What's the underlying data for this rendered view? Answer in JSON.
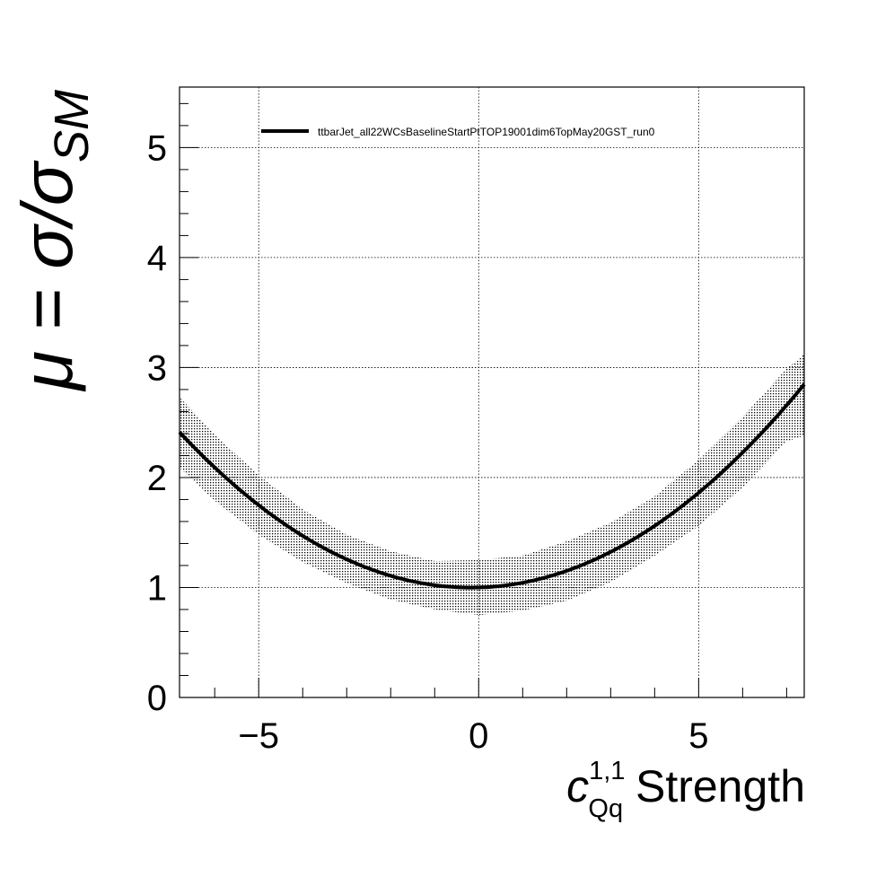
{
  "chart_data": {
    "type": "line",
    "xlabel_symbol": "c",
    "xlabel_superscript": "1,1",
    "xlabel_subscript": "Qq",
    "xlabel_suffix": " Strength",
    "ylabel_prefix": "μ = σ/σ",
    "ylabel_subscript": "SM",
    "xlim": [
      -6.8,
      7.4
    ],
    "ylim": [
      0,
      5.55
    ],
    "x_major_ticks": [
      -5,
      0,
      5
    ],
    "x_tick_labels": [
      "−5",
      "0",
      "5"
    ],
    "y_major_ticks": [
      0,
      1,
      2,
      3,
      4,
      5
    ],
    "y_tick_labels": [
      "0",
      "1",
      "2",
      "3",
      "4",
      "5"
    ],
    "grid": true,
    "legend_position": "top-left",
    "series": [
      {
        "name": "ttbarJet_all22WCsBaselineStartPtTOP19001dim6TopMay20GST_run0",
        "color": "#000000",
        "central_curve": {
          "form": "quadratic",
          "coeffs": {
            "a": 0.0322,
            "b": 0.0113,
            "c": 1.0
          }
        },
        "x": [
          -6.8,
          -6,
          -5,
          -4,
          -3,
          -2,
          -1,
          0,
          1,
          2,
          3,
          4,
          5,
          6,
          7,
          7.4
        ],
        "y": [
          2.41,
          2.09,
          1.75,
          1.47,
          1.26,
          1.11,
          1.02,
          1.0,
          1.04,
          1.15,
          1.32,
          1.56,
          1.86,
          2.23,
          2.66,
          2.75
        ],
        "band_low": [
          2.09,
          1.79,
          1.48,
          1.23,
          1.04,
          0.89,
          0.8,
          0.75,
          0.79,
          0.88,
          1.05,
          1.29,
          1.56,
          1.91,
          2.33,
          2.38
        ],
        "band_high": [
          2.73,
          2.39,
          2.02,
          1.71,
          1.48,
          1.33,
          1.24,
          1.25,
          1.29,
          1.42,
          1.59,
          1.83,
          2.16,
          2.55,
          2.99,
          3.12
        ]
      }
    ]
  }
}
